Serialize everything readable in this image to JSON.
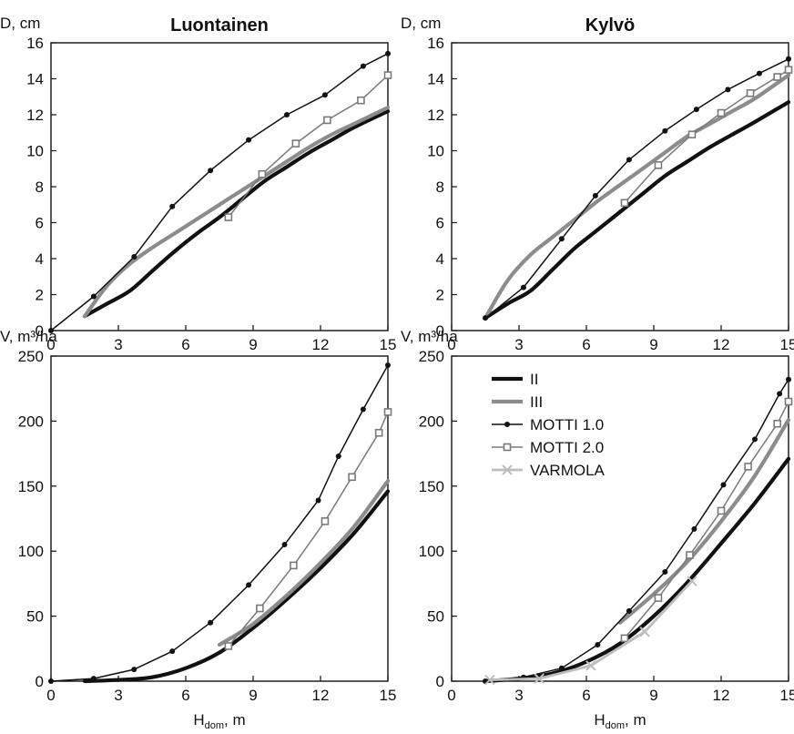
{
  "chart_data": [
    {
      "type": "line",
      "panel": "top-left",
      "title": "Luontainen",
      "ylabel": "D, cm",
      "xlabel": "",
      "xlim": [
        0,
        15
      ],
      "ylim": [
        0,
        16
      ],
      "x_ticks": [
        "0",
        "3",
        "6",
        "9",
        "12",
        "15"
      ],
      "y_ticks": [
        "0",
        "2",
        "4",
        "6",
        "8",
        "10",
        "12",
        "14",
        "16"
      ],
      "series": [
        {
          "key": "II",
          "x": [
            1.5,
            2.5,
            3.5,
            4.5,
            5.5,
            6.5,
            7.5,
            8.5,
            9.5,
            10.5,
            11.5,
            12.5,
            13.5,
            15
          ],
          "y": [
            0.8,
            1.5,
            2.2,
            3.3,
            4.4,
            5.4,
            6.3,
            7.3,
            8.3,
            9.1,
            9.9,
            10.6,
            11.3,
            12.2
          ]
        },
        {
          "key": "III",
          "x": [
            1.5,
            2.5,
            3.5,
            4.5,
            5.5,
            6.5,
            7.5,
            8.5,
            9.5,
            10.5,
            11.5,
            12.5,
            13.5,
            15
          ],
          "y": [
            0.8,
            2.5,
            3.7,
            4.6,
            5.4,
            6.2,
            7.0,
            7.8,
            8.6,
            9.4,
            10.2,
            10.9,
            11.5,
            12.4
          ]
        },
        {
          "key": "MOTTI 1.0",
          "x": [
            0,
            1.9,
            3.7,
            5.4,
            7.1,
            8.8,
            10.5,
            12.2,
            13.9,
            15
          ],
          "y": [
            0,
            1.9,
            4.1,
            6.9,
            8.9,
            10.6,
            12.0,
            13.1,
            14.7,
            15.4
          ]
        },
        {
          "key": "MOTTI 2.0",
          "x": [
            7.9,
            9.4,
            10.9,
            12.3,
            13.8,
            15
          ],
          "y": [
            6.3,
            8.7,
            10.4,
            11.7,
            12.8,
            14.2
          ]
        }
      ]
    },
    {
      "type": "line",
      "panel": "top-right",
      "title": "Kylvö",
      "ylabel": "D, cm",
      "xlabel": "",
      "xlim": [
        0,
        15
      ],
      "ylim": [
        0,
        16
      ],
      "x_ticks": [
        "0",
        "3",
        "6",
        "9",
        "12",
        "15"
      ],
      "y_ticks": [
        "0",
        "2",
        "4",
        "6",
        "8",
        "10",
        "12",
        "14",
        "16"
      ],
      "series": [
        {
          "key": "II",
          "x": [
            1.5,
            2.5,
            3.5,
            4.5,
            5.5,
            6.5,
            7.5,
            8.5,
            9.5,
            10.5,
            11.5,
            12.5,
            13.5,
            15
          ],
          "y": [
            0.7,
            1.5,
            2.2,
            3.4,
            4.6,
            5.6,
            6.6,
            7.6,
            8.6,
            9.4,
            10.2,
            10.9,
            11.6,
            12.7
          ]
        },
        {
          "key": "III",
          "x": [
            1.5,
            2.5,
            3.5,
            4.5,
            5.5,
            6.5,
            7.5,
            8.5,
            9.5,
            10.5,
            11.5,
            12.5,
            13.5,
            15
          ],
          "y": [
            0.7,
            2.8,
            4.2,
            5.2,
            6.2,
            7.2,
            8.1,
            9.0,
            9.9,
            10.8,
            11.5,
            12.2,
            12.9,
            14.2
          ]
        },
        {
          "key": "MOTTI 1.0",
          "x": [
            1.5,
            3.2,
            4.9,
            6.4,
            7.9,
            9.5,
            10.9,
            12.3,
            13.7,
            15
          ],
          "y": [
            0.7,
            2.4,
            5.1,
            7.5,
            9.5,
            11.1,
            12.3,
            13.4,
            14.3,
            15.1
          ]
        },
        {
          "key": "MOTTI 2.0",
          "x": [
            7.7,
            9.2,
            10.7,
            12.0,
            13.3,
            14.5,
            15.0
          ],
          "y": [
            7.1,
            9.2,
            10.9,
            12.1,
            13.2,
            14.1,
            14.5
          ]
        }
      ]
    },
    {
      "type": "line",
      "panel": "bottom-left",
      "title": "",
      "ylabel": "V, m³/ha",
      "xlabel": "H",
      "xlabel_sub": "dom",
      "xlabel_suffix": ", m",
      "xlim": [
        0,
        15
      ],
      "ylim": [
        0,
        250
      ],
      "x_ticks": [
        "0",
        "3",
        "6",
        "9",
        "12",
        "15"
      ],
      "y_ticks": [
        "0",
        "50",
        "100",
        "150",
        "200",
        "250"
      ],
      "series": [
        {
          "key": "II",
          "x": [
            1.5,
            3,
            4.5,
            6,
            7.5,
            9,
            10.5,
            12,
            13.5,
            15
          ],
          "y": [
            0,
            1,
            3,
            10,
            22,
            41,
            63,
            87,
            114,
            146
          ]
        },
        {
          "key": "III",
          "x": [
            7.5,
            9,
            10.5,
            12,
            13.5,
            15
          ],
          "y": [
            28,
            44,
            66,
            91,
            119,
            154
          ]
        },
        {
          "key": "MOTTI 1.0",
          "x": [
            0,
            1.9,
            3.7,
            5.4,
            7.1,
            8.8,
            10.4,
            11.9,
            12.8,
            13.9,
            15
          ],
          "y": [
            0,
            2,
            9,
            23,
            45,
            74,
            105,
            139,
            173,
            209,
            243
          ]
        },
        {
          "key": "MOTTI 2.0",
          "x": [
            7.9,
            9.3,
            10.8,
            12.2,
            13.4,
            14.6,
            15
          ],
          "y": [
            27,
            56,
            89,
            123,
            157,
            191,
            207
          ]
        }
      ]
    },
    {
      "type": "line",
      "panel": "bottom-right",
      "title": "",
      "ylabel": "V, m³/ha",
      "xlabel": "H",
      "xlabel_sub": "dom",
      "xlabel_suffix": ", m",
      "xlim": [
        0,
        15
      ],
      "ylim": [
        0,
        250
      ],
      "x_ticks": [
        "0",
        "3",
        "6",
        "9",
        "12",
        "15"
      ],
      "y_ticks": [
        "0",
        "50",
        "100",
        "150",
        "200",
        "250"
      ],
      "series": [
        {
          "key": "II",
          "x": [
            1.5,
            3,
            4.5,
            6,
            7.5,
            9,
            10.5,
            12,
            13.5,
            15
          ],
          "y": [
            0,
            2,
            6,
            15,
            29,
            50,
            76,
            106,
            137,
            171
          ]
        },
        {
          "key": "III",
          "x": [
            7.5,
            9,
            10.5,
            12,
            13.5,
            15
          ],
          "y": [
            45,
            67,
            92,
            123,
            158,
            201
          ]
        },
        {
          "key": "MOTTI 1.0",
          "x": [
            1.5,
            3.2,
            4.9,
            6.5,
            7.9,
            9.5,
            10.8,
            12.1,
            13.5,
            14.6,
            15
          ],
          "y": [
            0,
            3,
            10,
            28,
            54,
            84,
            117,
            151,
            186,
            221,
            232
          ]
        },
        {
          "key": "MOTTI 2.0",
          "x": [
            7.7,
            9.2,
            10.6,
            12.0,
            13.2,
            14.5,
            15
          ],
          "y": [
            33,
            64,
            97,
            131,
            165,
            198,
            215
          ]
        },
        {
          "key": "VARMOLA",
          "x": [
            1.7,
            3.9,
            6.2,
            8.6,
            10.7
          ],
          "y": [
            1,
            2,
            12,
            38,
            77
          ]
        }
      ]
    }
  ],
  "legend": {
    "placement": "top-left",
    "entries": [
      {
        "key": "II",
        "label": "II"
      },
      {
        "key": "III",
        "label": "III"
      },
      {
        "key": "MOTTI 1.0",
        "label": "MOTTI 1.0"
      },
      {
        "key": "MOTTI 2.0",
        "label": "MOTTI 2.0"
      },
      {
        "key": "VARMOLA",
        "label": "VARMOLA"
      }
    ]
  },
  "series_styles": {
    "II": {
      "color": "#111111",
      "marker": "none"
    },
    "III": {
      "color": "#8c8c8c",
      "marker": "none"
    },
    "MOTTI 1.0": {
      "color": "#111111",
      "marker": "dot"
    },
    "MOTTI 2.0": {
      "color": "#7a7a7a",
      "marker": "square"
    },
    "VARMOLA": {
      "color": "#bdbdbd",
      "marker": "x"
    }
  }
}
